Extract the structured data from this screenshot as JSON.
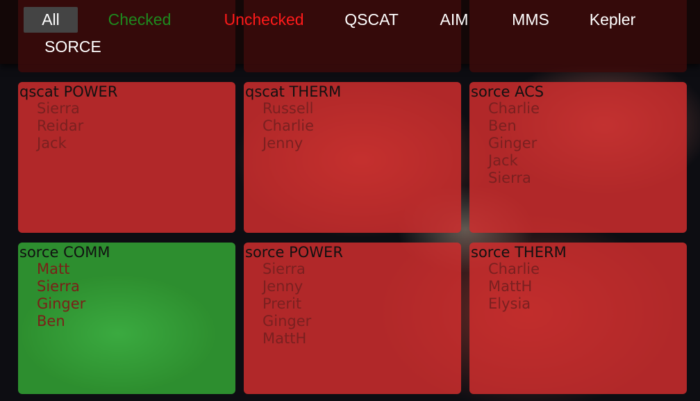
{
  "nav": [
    {
      "label": "All",
      "style": "active"
    },
    {
      "label": "Checked",
      "style": "green"
    },
    {
      "label": "Unchecked",
      "style": "red"
    },
    {
      "label": "QSCAT",
      "style": "normal"
    },
    {
      "label": "AIM",
      "style": "normal"
    },
    {
      "label": "MMS",
      "style": "normal"
    },
    {
      "label": "Kepler",
      "style": "normal"
    },
    {
      "label": "SORCE",
      "style": "normal"
    }
  ],
  "cards": [
    {
      "title": "qscat POWER",
      "status": "unchecked",
      "members": [
        "Sierra",
        "Reidar",
        "Jack"
      ]
    },
    {
      "title": "qscat THERM",
      "status": "unchecked",
      "members": [
        "Russell",
        "Charlie",
        "Jenny"
      ]
    },
    {
      "title": "sorce ACS",
      "status": "unchecked",
      "members": [
        "Charlie",
        "Ben",
        "Ginger",
        "Jack",
        "Sierra"
      ]
    },
    {
      "title": "sorce COMM",
      "status": "checked",
      "members": [
        "Matt",
        "Sierra",
        "Ginger",
        "Ben"
      ]
    },
    {
      "title": "sorce POWER",
      "status": "unchecked",
      "members": [
        "Sierra",
        "Jenny",
        "Prerit",
        "Ginger",
        "MattH"
      ]
    },
    {
      "title": "sorce THERM",
      "status": "unchecked",
      "members": [
        "Charlie",
        "MattH",
        "Elysia"
      ]
    }
  ],
  "colors": {
    "checked": "#37b437",
    "unchecked": "#cd2d2d",
    "checked_link": "#1e8a1e",
    "unchecked_link": "#ff1a1a"
  }
}
